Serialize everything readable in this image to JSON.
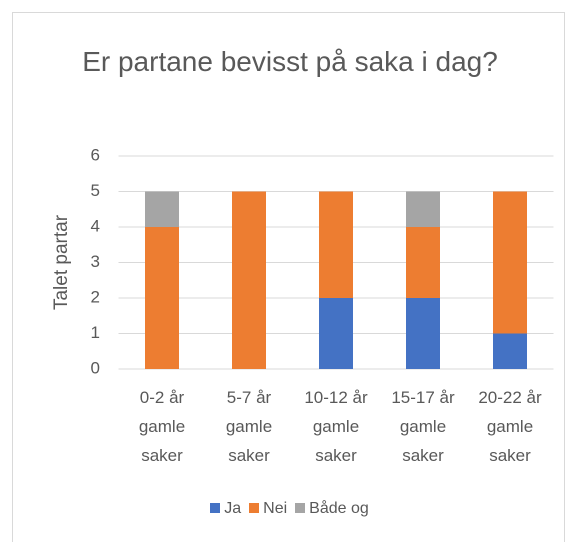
{
  "chart_data": {
    "type": "stacked_bar",
    "title": "Er partane bevisst på saka i dag?",
    "y_label": "Talet partar",
    "categories": [
      "0-2 år gamle saker",
      "5-7 år gamle saker",
      "10-12 år gamle saker",
      "15-17 år gamle saker",
      "20-22 år gamle saker"
    ],
    "series": [
      {
        "name": "Ja",
        "color": "#4472c4",
        "values": [
          0,
          0,
          2,
          2,
          1
        ]
      },
      {
        "name": "Nei",
        "color": "#ed7d31",
        "values": [
          4,
          5,
          3,
          2,
          4
        ]
      },
      {
        "name": "Både og",
        "color": "#a5a5a5",
        "values": [
          1,
          0,
          0,
          1,
          0
        ]
      }
    ],
    "ylim": [
      0,
      6
    ],
    "yticks": [
      0,
      1,
      2,
      3,
      4,
      5,
      6
    ],
    "grid": true,
    "legend": "bottom"
  }
}
